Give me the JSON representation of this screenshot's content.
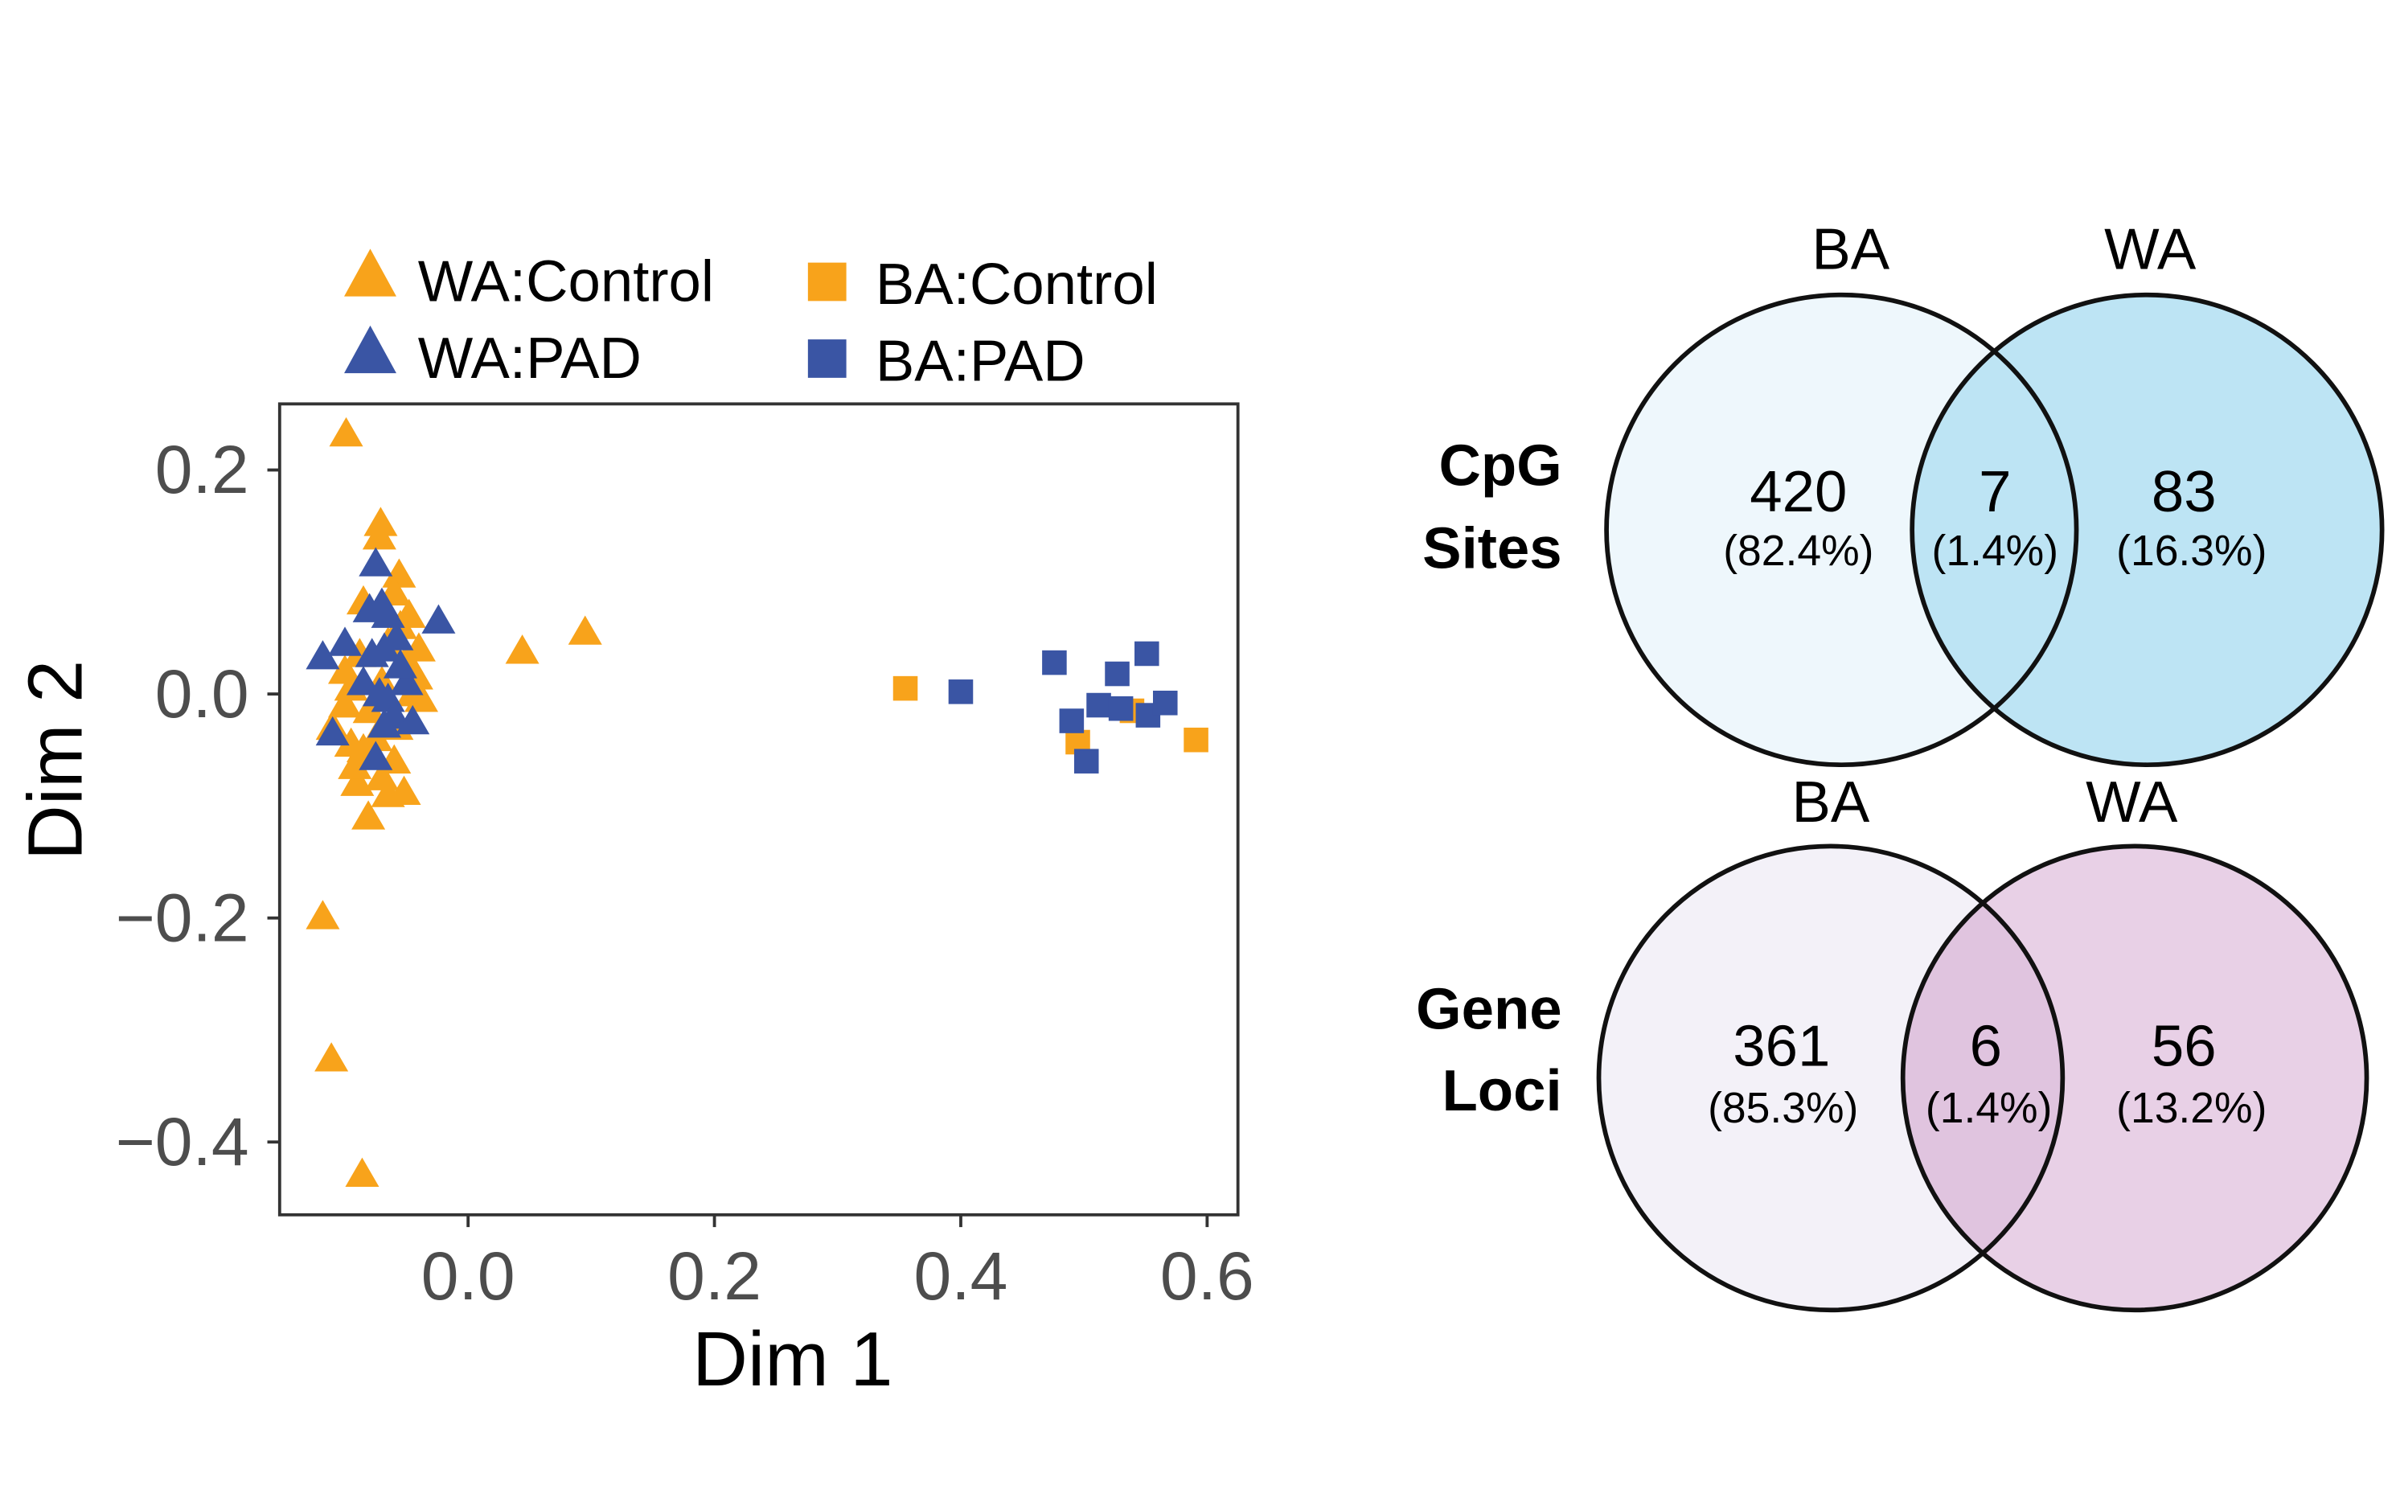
{
  "chart_data": [
    {
      "type": "scatter",
      "xlabel": "Dim 1",
      "ylabel": "Dim 2",
      "xlim": [
        -0.153,
        0.625
      ],
      "ylim": [
        -0.465,
        0.259
      ],
      "xticks": [
        "0.0",
        "0.2",
        "0.4",
        "0.6"
      ],
      "xtick_values": [
        0,
        0.2,
        0.4,
        0.6
      ],
      "yticks": [
        "0.2",
        "0.0",
        "−0.2",
        "−0.4"
      ],
      "ytick_values": [
        0.2,
        0,
        -0.2,
        -0.4
      ],
      "grid": false,
      "legend_placement": "top",
      "series": [
        {
          "name": "WA:Control",
          "marker": "triangle",
          "color": "#f8a31b",
          "points": [
            [
              -0.099,
              0.232
            ],
            [
              -0.071,
              0.152
            ],
            [
              -0.072,
              0.14
            ],
            [
              -0.056,
              0.106
            ],
            [
              0.044,
              0.038
            ],
            [
              0.095,
              0.055
            ],
            [
              -0.118,
              -0.199
            ],
            [
              -0.111,
              -0.326
            ],
            [
              -0.086,
              -0.429
            ],
            [
              -0.081,
              -0.11
            ],
            [
              -0.052,
              -0.088
            ],
            [
              -0.09,
              -0.08
            ],
            [
              -0.085,
              0.082
            ],
            [
              -0.06,
              0.09
            ],
            [
              -0.1,
              0.02
            ],
            [
              -0.095,
              0.005
            ],
            [
              -0.11,
              -0.03
            ],
            [
              -0.08,
              -0.015
            ],
            [
              -0.07,
              0.01
            ],
            [
              -0.05,
              0.03
            ],
            [
              -0.04,
              0.04
            ],
            [
              -0.045,
              0.0
            ],
            [
              -0.038,
              -0.005
            ],
            [
              -0.065,
              0.045
            ],
            [
              -0.075,
              -0.04
            ],
            [
              -0.085,
              -0.05
            ],
            [
              -0.06,
              -0.06
            ],
            [
              -0.095,
              -0.045
            ],
            [
              -0.1,
              -0.01
            ],
            [
              -0.055,
              0.06
            ],
            [
              -0.07,
              -0.075
            ],
            [
              -0.065,
              -0.09
            ],
            [
              -0.078,
              -0.055
            ],
            [
              -0.042,
              0.015
            ],
            [
              -0.088,
              0.035
            ],
            [
              -0.058,
              -0.03
            ],
            [
              -0.092,
              -0.065
            ],
            [
              -0.048,
              0.07
            ]
          ]
        },
        {
          "name": "WA:PAD",
          "marker": "triangle",
          "color": "#3a55a4",
          "points": [
            [
              -0.075,
              0.116
            ],
            [
              -0.024,
              0.065
            ],
            [
              -0.118,
              0.033
            ],
            [
              -0.075,
              -0.057
            ],
            [
              -0.11,
              -0.035
            ],
            [
              -0.08,
              0.075
            ],
            [
              -0.07,
              0.08
            ],
            [
              -0.065,
              0.07
            ],
            [
              -0.058,
              0.05
            ],
            [
              -0.068,
              0.04
            ],
            [
              -0.085,
              0.01
            ],
            [
              -0.072,
              0.0
            ],
            [
              -0.05,
              0.01
            ],
            [
              -0.065,
              -0.005
            ],
            [
              -0.06,
              -0.02
            ],
            [
              -0.045,
              -0.025
            ],
            [
              -0.068,
              -0.028
            ],
            [
              -0.1,
              0.045
            ],
            [
              -0.078,
              0.035
            ],
            [
              -0.055,
              0.025
            ]
          ]
        },
        {
          "name": "BA:Control",
          "marker": "square",
          "color": "#f8a31b",
          "points": [
            [
              0.355,
              0.005
            ],
            [
              0.495,
              -0.043
            ],
            [
              0.539,
              -0.015
            ],
            [
              0.591,
              -0.041
            ]
          ]
        },
        {
          "name": "BA:PAD",
          "marker": "square",
          "color": "#3a55a4",
          "points": [
            [
              0.4,
              0.002
            ],
            [
              0.476,
              0.028
            ],
            [
              0.527,
              0.018
            ],
            [
              0.551,
              0.036
            ],
            [
              0.49,
              -0.024
            ],
            [
              0.512,
              -0.01
            ],
            [
              0.502,
              -0.06
            ],
            [
              0.552,
              -0.019
            ],
            [
              0.566,
              -0.008
            ],
            [
              0.53,
              -0.013
            ]
          ]
        }
      ]
    },
    {
      "type": "venn",
      "row_label": [
        "CpG",
        "Sites"
      ],
      "sets": [
        "BA",
        "WA"
      ],
      "regions": [
        {
          "count": "420",
          "pct": "(82.4%)"
        },
        {
          "count": "7",
          "pct": "(1.4%)"
        },
        {
          "count": "83",
          "pct": "(16.3%)"
        }
      ],
      "colors": {
        "left": "#eef7fc",
        "right": "#bde4f4",
        "overlap": "#bde4f4"
      }
    },
    {
      "type": "venn",
      "row_label": [
        "Gene",
        "Loci"
      ],
      "sets": [
        "BA",
        "WA"
      ],
      "regions": [
        {
          "count": "361",
          "pct": "(85.3%)"
        },
        {
          "count": "6",
          "pct": "(1.4%)"
        },
        {
          "count": "56",
          "pct": "(13.2%)"
        }
      ],
      "colors": {
        "left": "#f3f1f8",
        "right": "#e8d0e6",
        "overlap": "#e0c4df"
      }
    }
  ]
}
